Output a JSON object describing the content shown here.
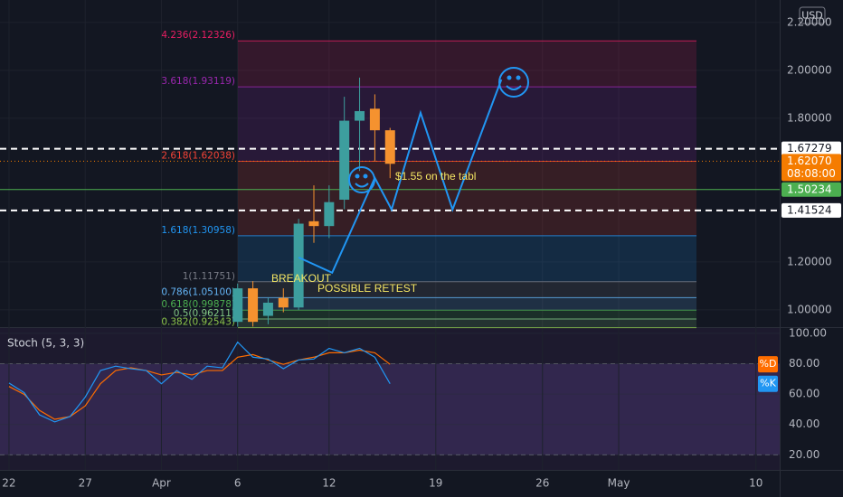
{
  "chart_data": [
    {
      "type": "candlestick",
      "currency": "USD",
      "x": [
        15,
        16,
        17,
        18,
        19,
        20,
        21,
        22,
        23,
        24,
        25
      ],
      "open": [
        0.95,
        1.09,
        0.975,
        1.05,
        1.01,
        1.37,
        1.35,
        1.46,
        1.79,
        1.84,
        1.75
      ],
      "high": [
        1.11,
        1.12,
        1.05,
        1.09,
        1.38,
        1.52,
        1.52,
        1.89,
        1.97,
        1.9,
        1.76
      ],
      "low": [
        0.93,
        0.93,
        0.94,
        0.99,
        1.0,
        1.28,
        1.3,
        1.42,
        1.58,
        1.62,
        1.55
      ],
      "close": [
        1.09,
        0.95,
        1.03,
        1.01,
        1.36,
        1.35,
        1.45,
        1.79,
        1.83,
        1.75,
        1.61
      ],
      "up_color": "#3d9e9e",
      "down_color": "#f5922f",
      "xlim": [
        -0.59,
        50.56
      ],
      "ylim": [
        0.928,
        2.294
      ],
      "yticks": [
        {
          "value": 1.0,
          "label": "1.00000"
        },
        {
          "value": 1.2,
          "label": "1.20000"
        },
        {
          "value": 1.8,
          "label": "1.80000"
        },
        {
          "value": 2.0,
          "label": "2.00000"
        },
        {
          "value": 2.2,
          "label": "2.20000"
        }
      ],
      "grid": true,
      "fib_levels": [
        {
          "label": "4.236(2.12326)",
          "value": 2.12326,
          "color": "#e91e63"
        },
        {
          "label": "3.618(1.93119)",
          "value": 1.93119,
          "color": "#9c27b0"
        },
        {
          "label": "2.618(1.62038)",
          "value": 1.62038,
          "color": "#f44336"
        },
        {
          "label": "1.618(1.30958)",
          "value": 1.30958,
          "color": "#2196f3"
        },
        {
          "label": "1(1.11751)",
          "value": 1.11751,
          "color": "#787b86"
        },
        {
          "label": "0.786(1.05100)",
          "value": 1.051,
          "color": "#64b5f6"
        },
        {
          "label": "0.618(0.99878)",
          "value": 0.99878,
          "color": "#4caf50"
        },
        {
          "label": "0.5(0.96211)",
          "value": 0.96211,
          "color": "#81c784"
        },
        {
          "label": "0.382(0.92543)",
          "value": 0.92543,
          "color": "#8bc34a"
        }
      ],
      "price_lines": [
        {
          "value": 1.67279,
          "color": "#ffffff",
          "style": "dashed"
        },
        {
          "value": 1.6207,
          "label": "1.62070",
          "countdown": "08:08:00",
          "color": "#f57c00",
          "style": "dotted"
        },
        {
          "value": 1.50234,
          "color": "#4caf50",
          "style": "solid"
        },
        {
          "value": 1.41524,
          "color": "#ffffff",
          "style": "dashed"
        }
      ],
      "projection": {
        "color": "#2196f3",
        "x": [
          19,
          21.2,
          24,
          25.1,
          27,
          29.1,
          32.3
        ],
        "values": [
          1.219,
          1.155,
          1.551,
          1.419,
          1.823,
          1.419,
          1.962
        ]
      },
      "annotations": [
        "BREAKOUT",
        "POSSIBLE RETEST",
        "$1.55 on the tabl"
      ]
    },
    {
      "type": "line",
      "title": "Stoch (5, 3, 3)",
      "x": [
        0,
        1,
        2,
        3,
        4,
        5,
        6,
        7,
        8,
        9,
        10,
        11,
        12,
        13,
        14,
        15,
        16,
        17,
        18,
        19,
        20,
        21,
        22,
        23,
        24,
        25
      ],
      "series": [
        {
          "name": "%D",
          "color": "#ff6d00",
          "values": [
            65,
            59.8,
            49.3,
            43.4,
            45.2,
            52.2,
            66.8,
            75.5,
            77.3,
            75.5,
            72.6,
            74.3,
            72.6,
            75.5,
            75.5,
            84.3,
            86.0,
            82.5,
            79.6,
            82.5,
            84.3,
            87.2,
            87.2,
            88.9,
            87.2,
            79.6
          ]
        },
        {
          "name": "%K",
          "color": "#2196f3",
          "values": [
            67.3,
            60.9,
            46.4,
            41.7,
            45.2,
            58.0,
            75.5,
            78.4,
            76.7,
            75.5,
            66.8,
            75.5,
            69.7,
            78.4,
            77.3,
            94.2,
            84.3,
            83.1,
            76.7,
            82.5,
            83.1,
            90.1,
            87.2,
            90.1,
            84.3,
            66.8
          ]
        }
      ],
      "xlim": [
        -0.59,
        50.56
      ],
      "ylim": [
        10.1,
        103.5
      ],
      "yticks": [
        {
          "value": 20,
          "label": "20.00"
        },
        {
          "value": 40,
          "label": "40.00"
        },
        {
          "value": 60,
          "label": "60.00"
        },
        {
          "value": 80,
          "label": "80.00"
        },
        {
          "value": 100,
          "label": "100.00"
        }
      ],
      "levels": [
        80,
        20
      ],
      "xticks": [
        {
          "value": 0,
          "label": "22"
        },
        {
          "value": 5,
          "label": "27"
        },
        {
          "value": 10,
          "label": "Apr"
        },
        {
          "value": 15,
          "label": "6"
        },
        {
          "value": 21,
          "label": "12"
        },
        {
          "value": 28,
          "label": "19"
        },
        {
          "value": 35,
          "label": "26"
        },
        {
          "value": 40,
          "label": "May"
        },
        {
          "value": 49,
          "label": "10"
        }
      ]
    }
  ]
}
